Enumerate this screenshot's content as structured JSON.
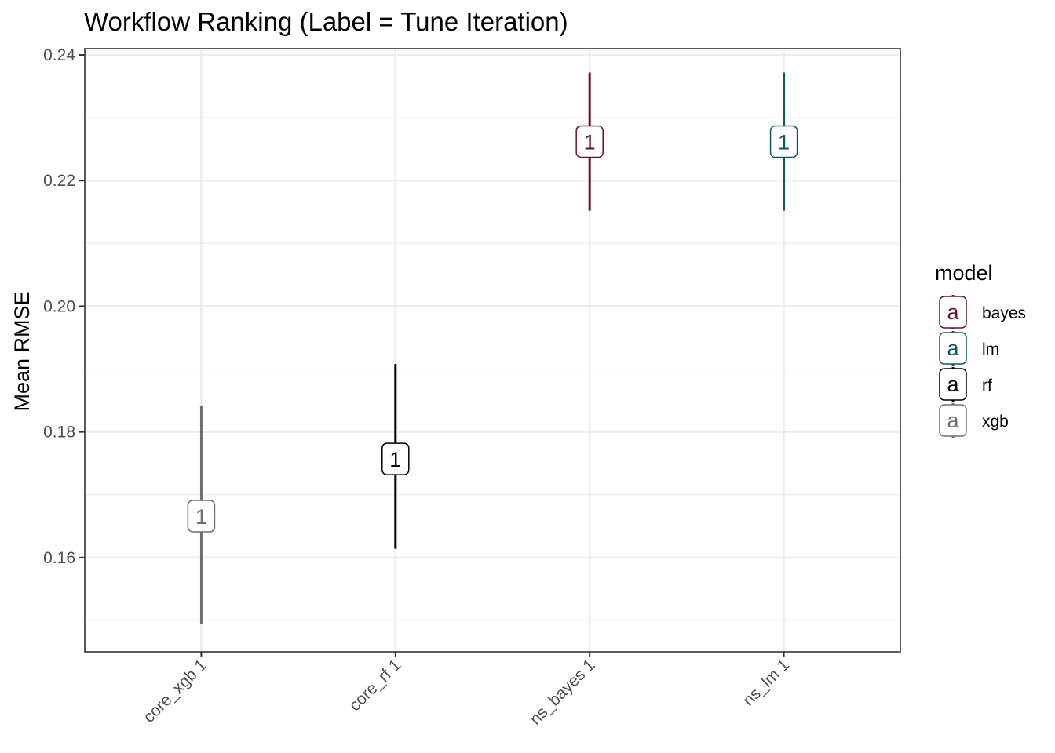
{
  "chart_data": {
    "type": "scatter",
    "title": "Workflow Ranking (Label = Tune Iteration)",
    "xlabel": "",
    "ylabel": "Mean RMSE",
    "ylim": [
      0.145,
      0.241
    ],
    "yticks": [
      "0.16",
      "0.18",
      "0.20",
      "0.22",
      "0.24"
    ],
    "ytick_values": [
      0.16,
      0.18,
      0.2,
      0.22,
      0.24
    ],
    "grid": true,
    "categories": [
      "core_xgb 1",
      "core_rf 1",
      "ns_bayes 1",
      "ns_lm 1"
    ],
    "points": [
      {
        "category": "core_xgb 1",
        "model": "xgb",
        "label": "1",
        "mean": 0.1666,
        "lower": 0.1494,
        "upper": 0.1842
      },
      {
        "category": "core_rf 1",
        "model": "rf",
        "label": "1",
        "mean": 0.1757,
        "lower": 0.1614,
        "upper": 0.1908
      },
      {
        "category": "ns_bayes 1",
        "model": "bayes",
        "label": "1",
        "mean": 0.2262,
        "lower": 0.2152,
        "upper": 0.2372
      },
      {
        "category": "ns_lm 1",
        "model": "lm",
        "label": "1",
        "mean": 0.2262,
        "lower": 0.2152,
        "upper": 0.2372
      }
    ],
    "legend": {
      "title": "model",
      "placement": "right",
      "key_glyph": "a",
      "entries": [
        {
          "name": "bayes",
          "color": "#6b0f2e"
        },
        {
          "name": "lm",
          "color": "#0d5a5e"
        },
        {
          "name": "rf",
          "color": "#000000"
        },
        {
          "name": "xgb",
          "color": "#6e6e6e"
        }
      ]
    }
  }
}
